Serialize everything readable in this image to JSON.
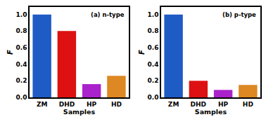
{
  "chart_data": [
    {
      "type": "bar",
      "title": "(a) n-type",
      "categories": [
        "ZM",
        "DHD",
        "HP",
        "HD"
      ],
      "values": [
        1.0,
        0.8,
        0.16,
        0.26
      ],
      "colors": [
        "#1f5bc4",
        "#dd1111",
        "#aa22cc",
        "#dd8822"
      ],
      "xlabel": "Samples",
      "ylabel": "F",
      "ylim": [
        0.0,
        1.09
      ],
      "yticks": [
        {
          "value": 0.0,
          "label": "0.0"
        },
        0.2,
        0.4,
        0.6,
        0.8,
        {
          "value": 1.0,
          "label": "1.0"
        }
      ],
      "grid": false
    },
    {
      "type": "bar",
      "title": "(b) p-type",
      "categories": [
        "ZM",
        "DHD",
        "HP",
        "HD"
      ],
      "values": [
        1.0,
        0.2,
        0.09,
        0.15
      ],
      "colors": [
        "#1f5bc4",
        "#dd1111",
        "#aa22cc",
        "#dd8822"
      ],
      "xlabel": "Samples",
      "ylabel": "F",
      "ylim": [
        0.0,
        1.09
      ],
      "yticks": [
        {
          "value": 0.0,
          "label": "0.0"
        },
        0.2,
        0.4,
        0.6,
        0.8,
        {
          "value": 1.0,
          "label": "1.0"
        }
      ],
      "grid": false
    }
  ]
}
